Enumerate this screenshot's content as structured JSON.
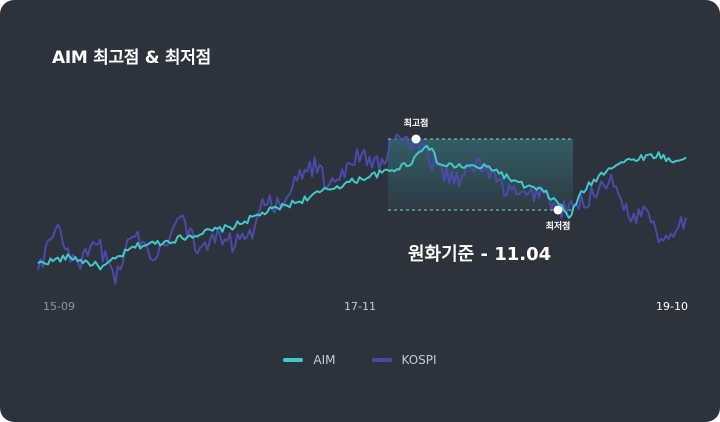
{
  "title": "AIM 최고점 & 최저점",
  "colors": {
    "aim": "#41c9c8",
    "kospi": "#4b4aa8",
    "background": "#2d333d"
  },
  "annotations": {
    "high_label": "최고점",
    "low_label": "최저점",
    "note": "원화기준 - 11.04"
  },
  "chart_data": {
    "type": "line",
    "x_start": "15-09",
    "x_end": "19-10",
    "x_ticks": [
      "15-09",
      "17-11",
      "19-10"
    ],
    "xlabel": "",
    "ylabel": "",
    "grid": false,
    "legend": "bottom-center",
    "y_axis_shown": false,
    "series": [
      {
        "name": "AIM",
        "color": "#41c9c8",
        "anchors": [
          [
            0,
            0.05
          ],
          [
            0.05,
            0.1
          ],
          [
            0.1,
            0.02
          ],
          [
            0.15,
            0.18
          ],
          [
            0.2,
            0.22
          ],
          [
            0.25,
            0.28
          ],
          [
            0.3,
            0.33
          ],
          [
            0.35,
            0.44
          ],
          [
            0.4,
            0.52
          ],
          [
            0.45,
            0.62
          ],
          [
            0.5,
            0.7
          ],
          [
            0.545,
            0.76
          ],
          [
            0.575,
            0.82
          ],
          [
            0.6,
            0.97
          ],
          [
            0.62,
            0.8
          ],
          [
            0.66,
            0.79
          ],
          [
            0.7,
            0.78
          ],
          [
            0.74,
            0.66
          ],
          [
            0.78,
            0.6
          ],
          [
            0.805,
            0.5
          ],
          [
            0.82,
            0.4
          ],
          [
            0.84,
            0.6
          ],
          [
            0.88,
            0.78
          ],
          [
            0.9,
            0.82
          ],
          [
            0.93,
            0.86
          ],
          [
            0.96,
            0.88
          ],
          [
            0.98,
            0.82
          ],
          [
            1.0,
            0.86
          ]
        ]
      },
      {
        "name": "KOSPI",
        "color": "#4b4aa8",
        "anchors": [
          [
            0,
            0.0
          ],
          [
            0.03,
            0.35
          ],
          [
            0.06,
            0.0
          ],
          [
            0.09,
            0.22
          ],
          [
            0.12,
            -0.05
          ],
          [
            0.15,
            0.3
          ],
          [
            0.18,
            0.1
          ],
          [
            0.2,
            0.25
          ],
          [
            0.22,
            0.42
          ],
          [
            0.25,
            0.12
          ],
          [
            0.28,
            0.28
          ],
          [
            0.3,
            0.2
          ],
          [
            0.33,
            0.3
          ],
          [
            0.35,
            0.55
          ],
          [
            0.38,
            0.45
          ],
          [
            0.4,
            0.72
          ],
          [
            0.43,
            0.8
          ],
          [
            0.45,
            0.62
          ],
          [
            0.48,
            0.82
          ],
          [
            0.5,
            0.9
          ],
          [
            0.53,
            0.78
          ],
          [
            0.55,
            1.02
          ],
          [
            0.58,
            0.95
          ],
          [
            0.6,
            0.88
          ],
          [
            0.62,
            0.75
          ],
          [
            0.65,
            0.7
          ],
          [
            0.68,
            0.82
          ],
          [
            0.7,
            0.72
          ],
          [
            0.72,
            0.62
          ],
          [
            0.75,
            0.55
          ],
          [
            0.78,
            0.62
          ],
          [
            0.8,
            0.45
          ],
          [
            0.83,
            0.48
          ],
          [
            0.85,
            0.55
          ],
          [
            0.88,
            0.7
          ],
          [
            0.9,
            0.55
          ],
          [
            0.92,
            0.38
          ],
          [
            0.94,
            0.5
          ],
          [
            0.96,
            0.22
          ],
          [
            0.98,
            0.32
          ],
          [
            1.0,
            0.4
          ]
        ]
      }
    ],
    "high": {
      "x": 0.59,
      "label": "최고점"
    },
    "low": {
      "x": 0.818,
      "label": "최저점"
    }
  }
}
